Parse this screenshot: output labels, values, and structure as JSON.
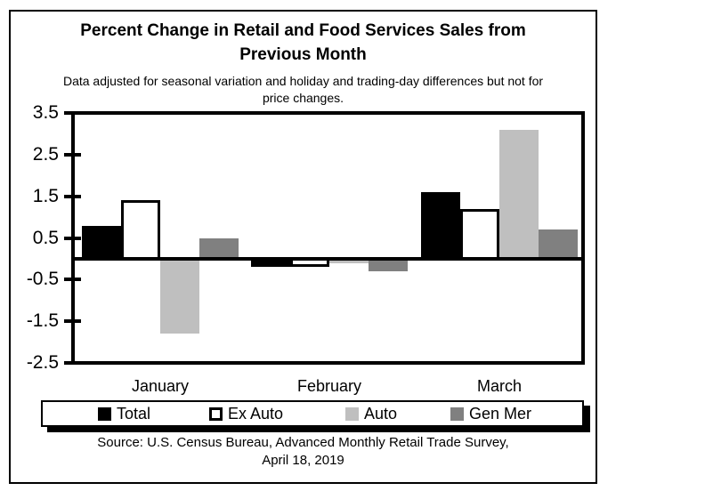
{
  "title": {
    "line1": "Percent Change in Retail and Food Services Sales from",
    "line2": "Previous Month"
  },
  "subtitle": {
    "line1": "Data adjusted for seasonal variation and holiday and trading-day differences but not for",
    "line2": "price changes."
  },
  "source": {
    "line1": "Source: U.S. Census Bureau, Advanced Monthly Retail Trade Survey,",
    "line2": "April 18, 2019"
  },
  "chart_data": {
    "type": "bar",
    "categories": [
      "January",
      "February",
      "March"
    ],
    "series": [
      {
        "name": "Total",
        "values": [
          0.8,
          -0.2,
          1.6
        ],
        "color": "#000000",
        "border": "#000000"
      },
      {
        "name": "Ex Auto",
        "values": [
          1.4,
          -0.2,
          1.2
        ],
        "color": "#ffffff",
        "border": "#000000"
      },
      {
        "name": "Auto",
        "values": [
          -1.8,
          -0.1,
          3.1
        ],
        "color": "#bfbfbf",
        "border": "#bfbfbf"
      },
      {
        "name": "Gen Mer",
        "values": [
          0.5,
          -0.3,
          0.7
        ],
        "color": "#808080",
        "border": "#808080"
      }
    ],
    "yticks": [
      3.5,
      2.5,
      1.5,
      0.5,
      -0.5,
      -1.5,
      -2.5
    ],
    "ylim": [
      -2.5,
      3.5
    ],
    "xlabel": "",
    "ylabel": "",
    "grid": false,
    "legend_position": "bottom"
  }
}
